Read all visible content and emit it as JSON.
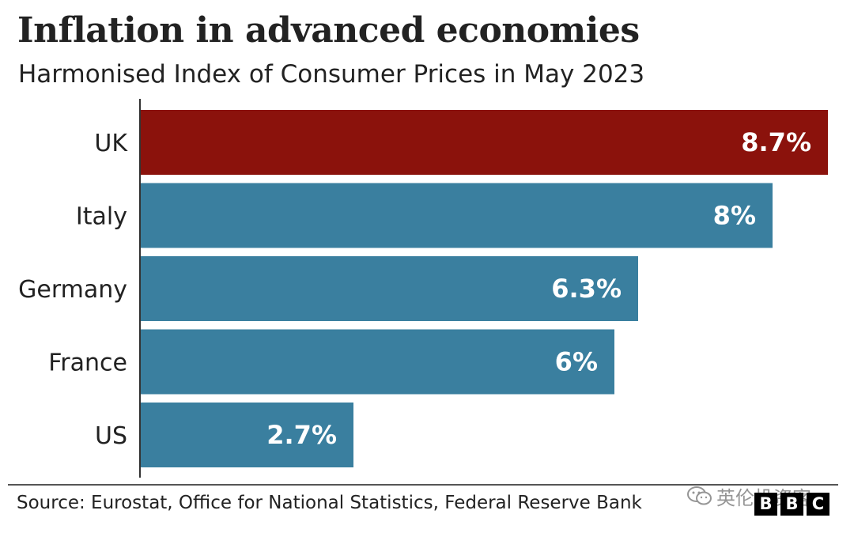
{
  "header": {
    "title": "Inflation in advanced economies",
    "subtitle": "Harmonised Index of Consumer Prices in May 2023"
  },
  "footer": {
    "source": "Source: Eurostat, Office for National Statistics, Federal Reserve Bank",
    "watermark_text": "英伦投资客",
    "watermark_icon": "wechat-icon",
    "logo_letters": [
      "B",
      "B",
      "C"
    ]
  },
  "colors": {
    "highlight": "#8b120c",
    "default_bar": "#3a7f9f",
    "bar_label": "#ffffff",
    "axis": "#333333"
  },
  "chart_data": {
    "type": "bar",
    "orientation": "horizontal",
    "categories": [
      "UK",
      "Italy",
      "Germany",
      "France",
      "US"
    ],
    "values": [
      8.7,
      8.0,
      6.3,
      6.0,
      2.7
    ],
    "data_labels": [
      "8.7%",
      "8%",
      "6.3%",
      "6%",
      "2.7%"
    ],
    "highlight": [
      "UK"
    ],
    "title": "Inflation in advanced economies",
    "subtitle": "Harmonised Index of Consumer Prices in May 2023",
    "xlim": [
      0,
      8.7
    ],
    "grid": false,
    "legend": "none"
  }
}
